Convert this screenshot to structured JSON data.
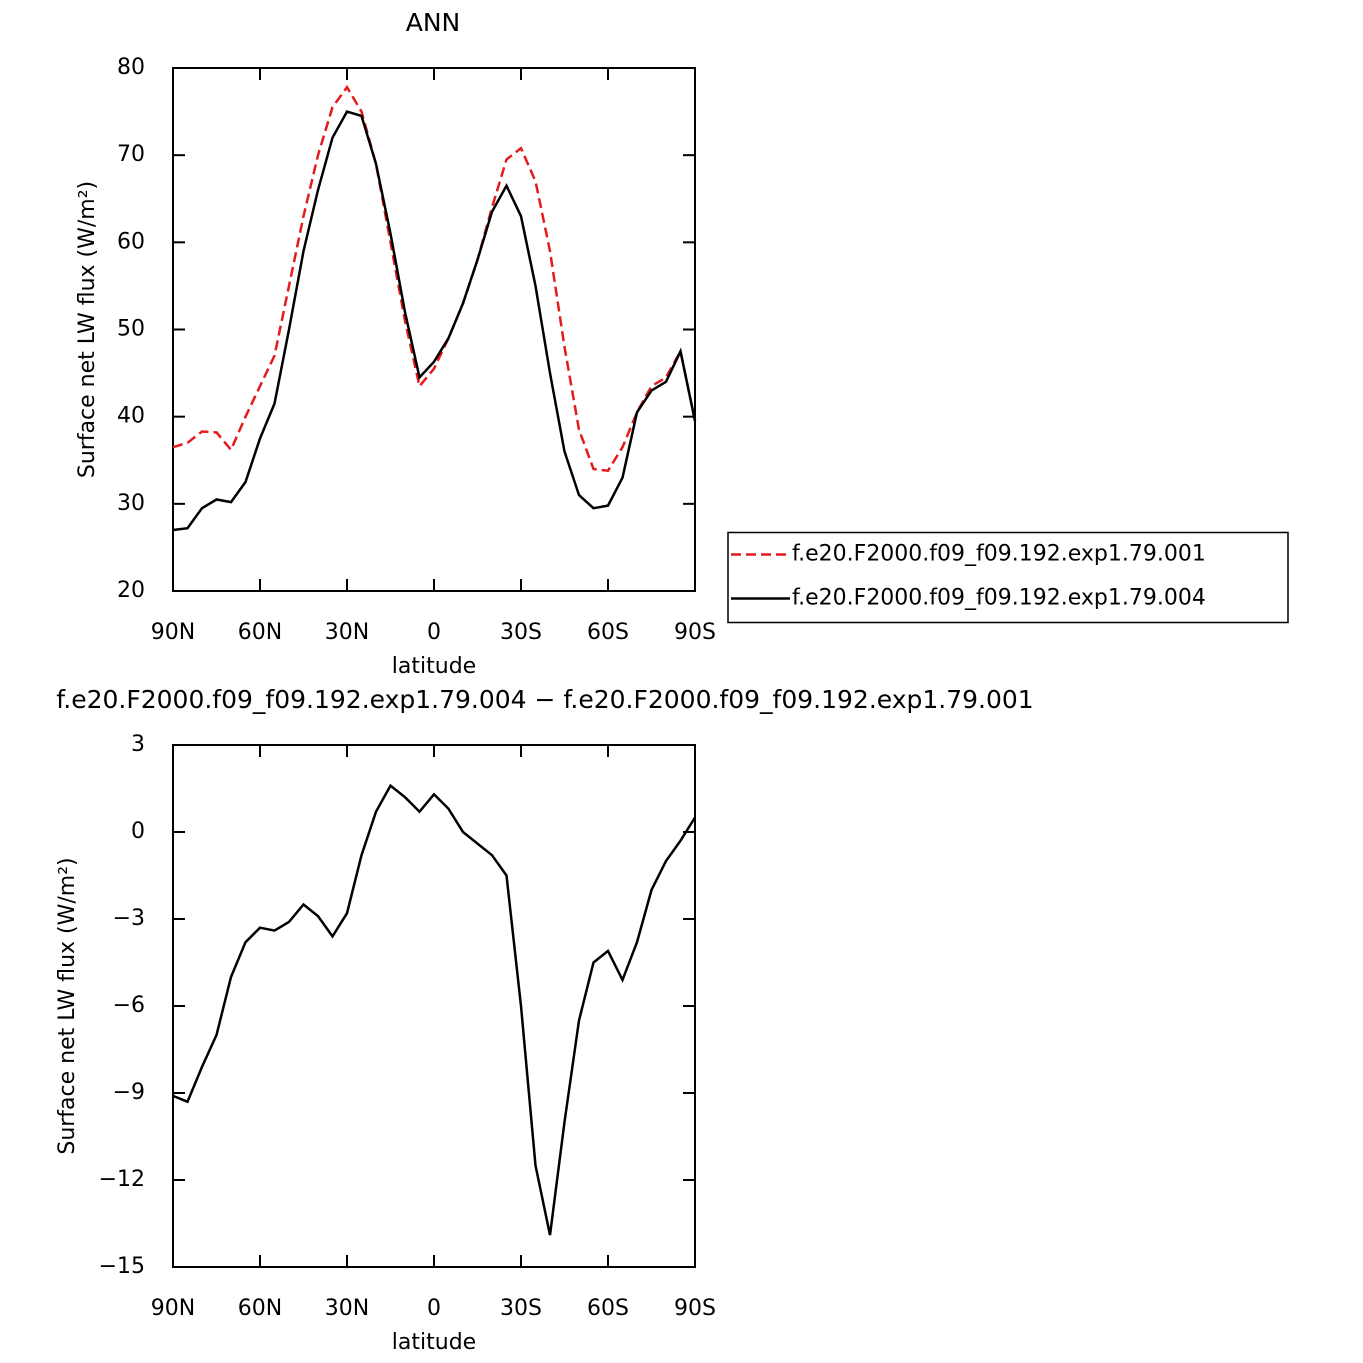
{
  "chart_data": [
    {
      "type": "line",
      "title": "ANN",
      "xlabel": "latitude",
      "ylabel": "Surface net LW flux (W/m²)",
      "x": [
        90,
        85,
        80,
        75,
        70,
        65,
        60,
        55,
        50,
        45,
        40,
        35,
        30,
        25,
        20,
        15,
        10,
        5,
        0,
        -5,
        -10,
        -15,
        -20,
        -25,
        -30,
        -35,
        -40,
        -45,
        -50,
        -55,
        -60,
        -65,
        -70,
        -75,
        -80,
        -85,
        -90
      ],
      "xlim": [
        90,
        -90
      ],
      "xticks": [
        {
          "value": 90,
          "label": "90N"
        },
        {
          "value": 60,
          "label": "60N"
        },
        {
          "value": 30,
          "label": "30N"
        },
        0,
        {
          "value": -30,
          "label": "30S"
        },
        {
          "value": -60,
          "label": "60S"
        },
        {
          "value": -90,
          "label": "90S"
        }
      ],
      "ylim": [
        20,
        80
      ],
      "yticks": [
        20,
        30,
        40,
        50,
        60,
        70,
        80
      ],
      "legend": "right",
      "series": [
        {
          "name": "f.e20.F2000.f09_f09.192.exp1.79.001",
          "color": "#e41a1c",
          "linestyle": "dashed",
          "values": [
            36.5,
            37,
            38.3,
            38.2,
            36.2,
            40,
            43.5,
            47,
            55,
            63,
            70,
            75.5,
            77.8,
            75,
            69,
            60,
            51,
            43.5,
            45.5,
            49,
            53,
            58,
            64,
            69.5,
            70.8,
            67,
            59,
            48,
            38.5,
            34,
            33.8,
            36.5,
            40.5,
            43.5,
            44.5,
            47.5,
            39.5
          ]
        },
        {
          "name": "f.e20.F2000.f09_f09.192.exp1.79.004",
          "color": "#000000",
          "linestyle": "solid",
          "values": [
            27,
            27.2,
            29.5,
            30.5,
            30.2,
            32.5,
            37.5,
            41.5,
            50,
            59,
            66,
            72,
            75,
            74.5,
            69,
            61,
            52,
            44.5,
            46.3,
            49,
            53,
            58,
            63.5,
            66.5,
            63,
            55,
            45,
            36,
            31,
            29.5,
            29.8,
            33,
            40.5,
            43,
            44,
            47.5,
            39.5
          ]
        }
      ]
    },
    {
      "type": "line",
      "title": "f.e20.F2000.f09_f09.192.exp1.79.004 − f.e20.F2000.f09_f09.192.exp1.79.001",
      "xlabel": "latitude",
      "ylabel": "Surface net LW flux (W/m²)",
      "x": [
        90,
        85,
        80,
        75,
        70,
        65,
        60,
        55,
        50,
        45,
        40,
        35,
        30,
        25,
        20,
        15,
        10,
        5,
        0,
        -5,
        -10,
        -15,
        -20,
        -25,
        -30,
        -35,
        -40,
        -45,
        -50,
        -55,
        -60,
        -65,
        -70,
        -75,
        -80,
        -85,
        -90
      ],
      "xlim": [
        90,
        -90
      ],
      "xticks": [
        {
          "value": 90,
          "label": "90N"
        },
        {
          "value": 60,
          "label": "60N"
        },
        {
          "value": 30,
          "label": "30N"
        },
        0,
        {
          "value": -30,
          "label": "30S"
        },
        {
          "value": -60,
          "label": "60S"
        },
        {
          "value": -90,
          "label": "90S"
        }
      ],
      "ylim": [
        -15,
        3
      ],
      "yticks": [
        {
          "value": -15,
          "label": "−15"
        },
        {
          "value": -12,
          "label": "−12"
        },
        {
          "value": -9,
          "label": "−9"
        },
        {
          "value": -6,
          "label": "−6"
        },
        {
          "value": -3,
          "label": "−3"
        },
        0,
        3
      ],
      "series": [
        {
          "color": "#000000",
          "linestyle": "solid",
          "values": [
            -9.1,
            -9.3,
            -8.1,
            -7,
            -5,
            -3.8,
            -3.3,
            -3.4,
            -3.1,
            -2.5,
            -2.9,
            -3.6,
            -2.8,
            -0.8,
            0.7,
            1.6,
            1.2,
            0.7,
            1.3,
            0.8,
            0,
            -0.4,
            -0.8,
            -1.5,
            -6,
            -11.5,
            -13.9,
            -10,
            -6.5,
            -4.5,
            -4.1,
            -5.1,
            -3.8,
            -2,
            -1,
            -0.3,
            0.5
          ]
        }
      ]
    }
  ]
}
